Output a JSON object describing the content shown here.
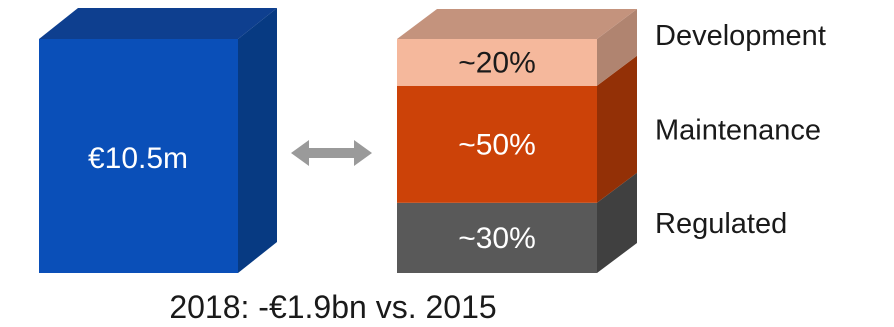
{
  "chart_data": {
    "type": "bar",
    "total": {
      "label": "€10.5m",
      "color": "#0a4fb8"
    },
    "segments": [
      {
        "name": "Regulated",
        "label": "~30%",
        "value": 30,
        "color": "#595959"
      },
      {
        "name": "Maintenance",
        "label": "~50%",
        "value": 50,
        "color": "#cc4208"
      },
      {
        "name": "Development",
        "label": "~20%",
        "value": 20,
        "color": "#f5b89c"
      }
    ],
    "arrow_color": "#9a9a9a",
    "caption": "2018: -€1.9bn vs. 2015"
  }
}
